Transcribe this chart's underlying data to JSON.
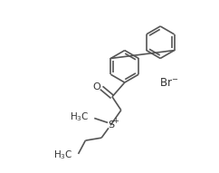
{
  "bg_color": "#ffffff",
  "line_color": "#555555",
  "text_color": "#333333",
  "figsize": [
    2.42,
    1.91
  ],
  "dpi": 100,
  "bond_lw": 1.2,
  "ring_r": 18,
  "font_size_label": 7.5,
  "font_size_br": 8.5
}
